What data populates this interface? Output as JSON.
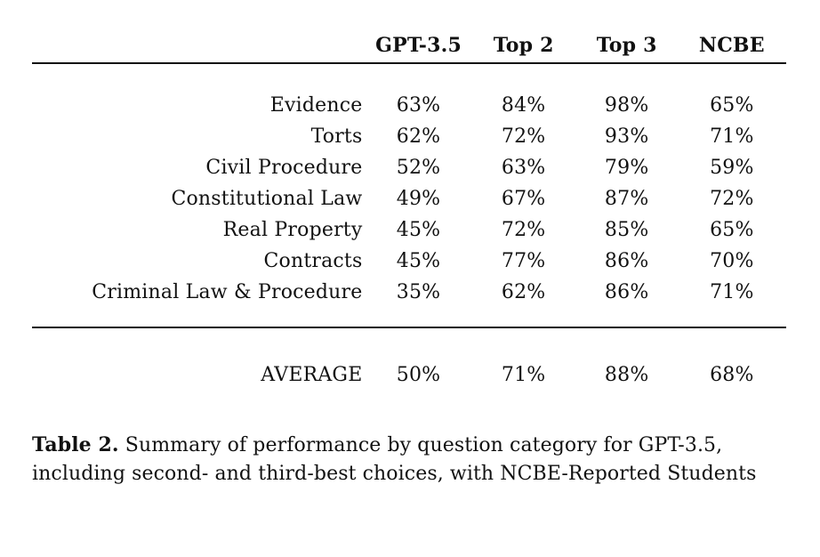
{
  "table": {
    "headers": [
      "GPT-3.5",
      "Top 2",
      "Top 3",
      "NCBE"
    ],
    "rows": [
      {
        "category": "Evidence",
        "values": [
          "63%",
          "84%",
          "98%",
          "65%"
        ]
      },
      {
        "category": "Torts",
        "values": [
          "62%",
          "72%",
          "93%",
          "71%"
        ]
      },
      {
        "category": "Civil Procedure",
        "values": [
          "52%",
          "63%",
          "79%",
          "59%"
        ]
      },
      {
        "category": "Constitutional Law",
        "values": [
          "49%",
          "67%",
          "87%",
          "72%"
        ]
      },
      {
        "category": "Real Property",
        "values": [
          "45%",
          "72%",
          "85%",
          "65%"
        ]
      },
      {
        "category": "Contracts",
        "values": [
          "45%",
          "77%",
          "86%",
          "70%"
        ]
      },
      {
        "category": "Criminal Law & Procedure",
        "values": [
          "35%",
          "62%",
          "86%",
          "71%"
        ]
      }
    ],
    "average": {
      "category": "AVERAGE",
      "values": [
        "50%",
        "71%",
        "88%",
        "68%"
      ]
    }
  },
  "caption": {
    "label": "Table 2.",
    "text": " Summary of performance by question category for GPT-3.5, including second- and third-best choices, with NCBE-Reported Students"
  }
}
